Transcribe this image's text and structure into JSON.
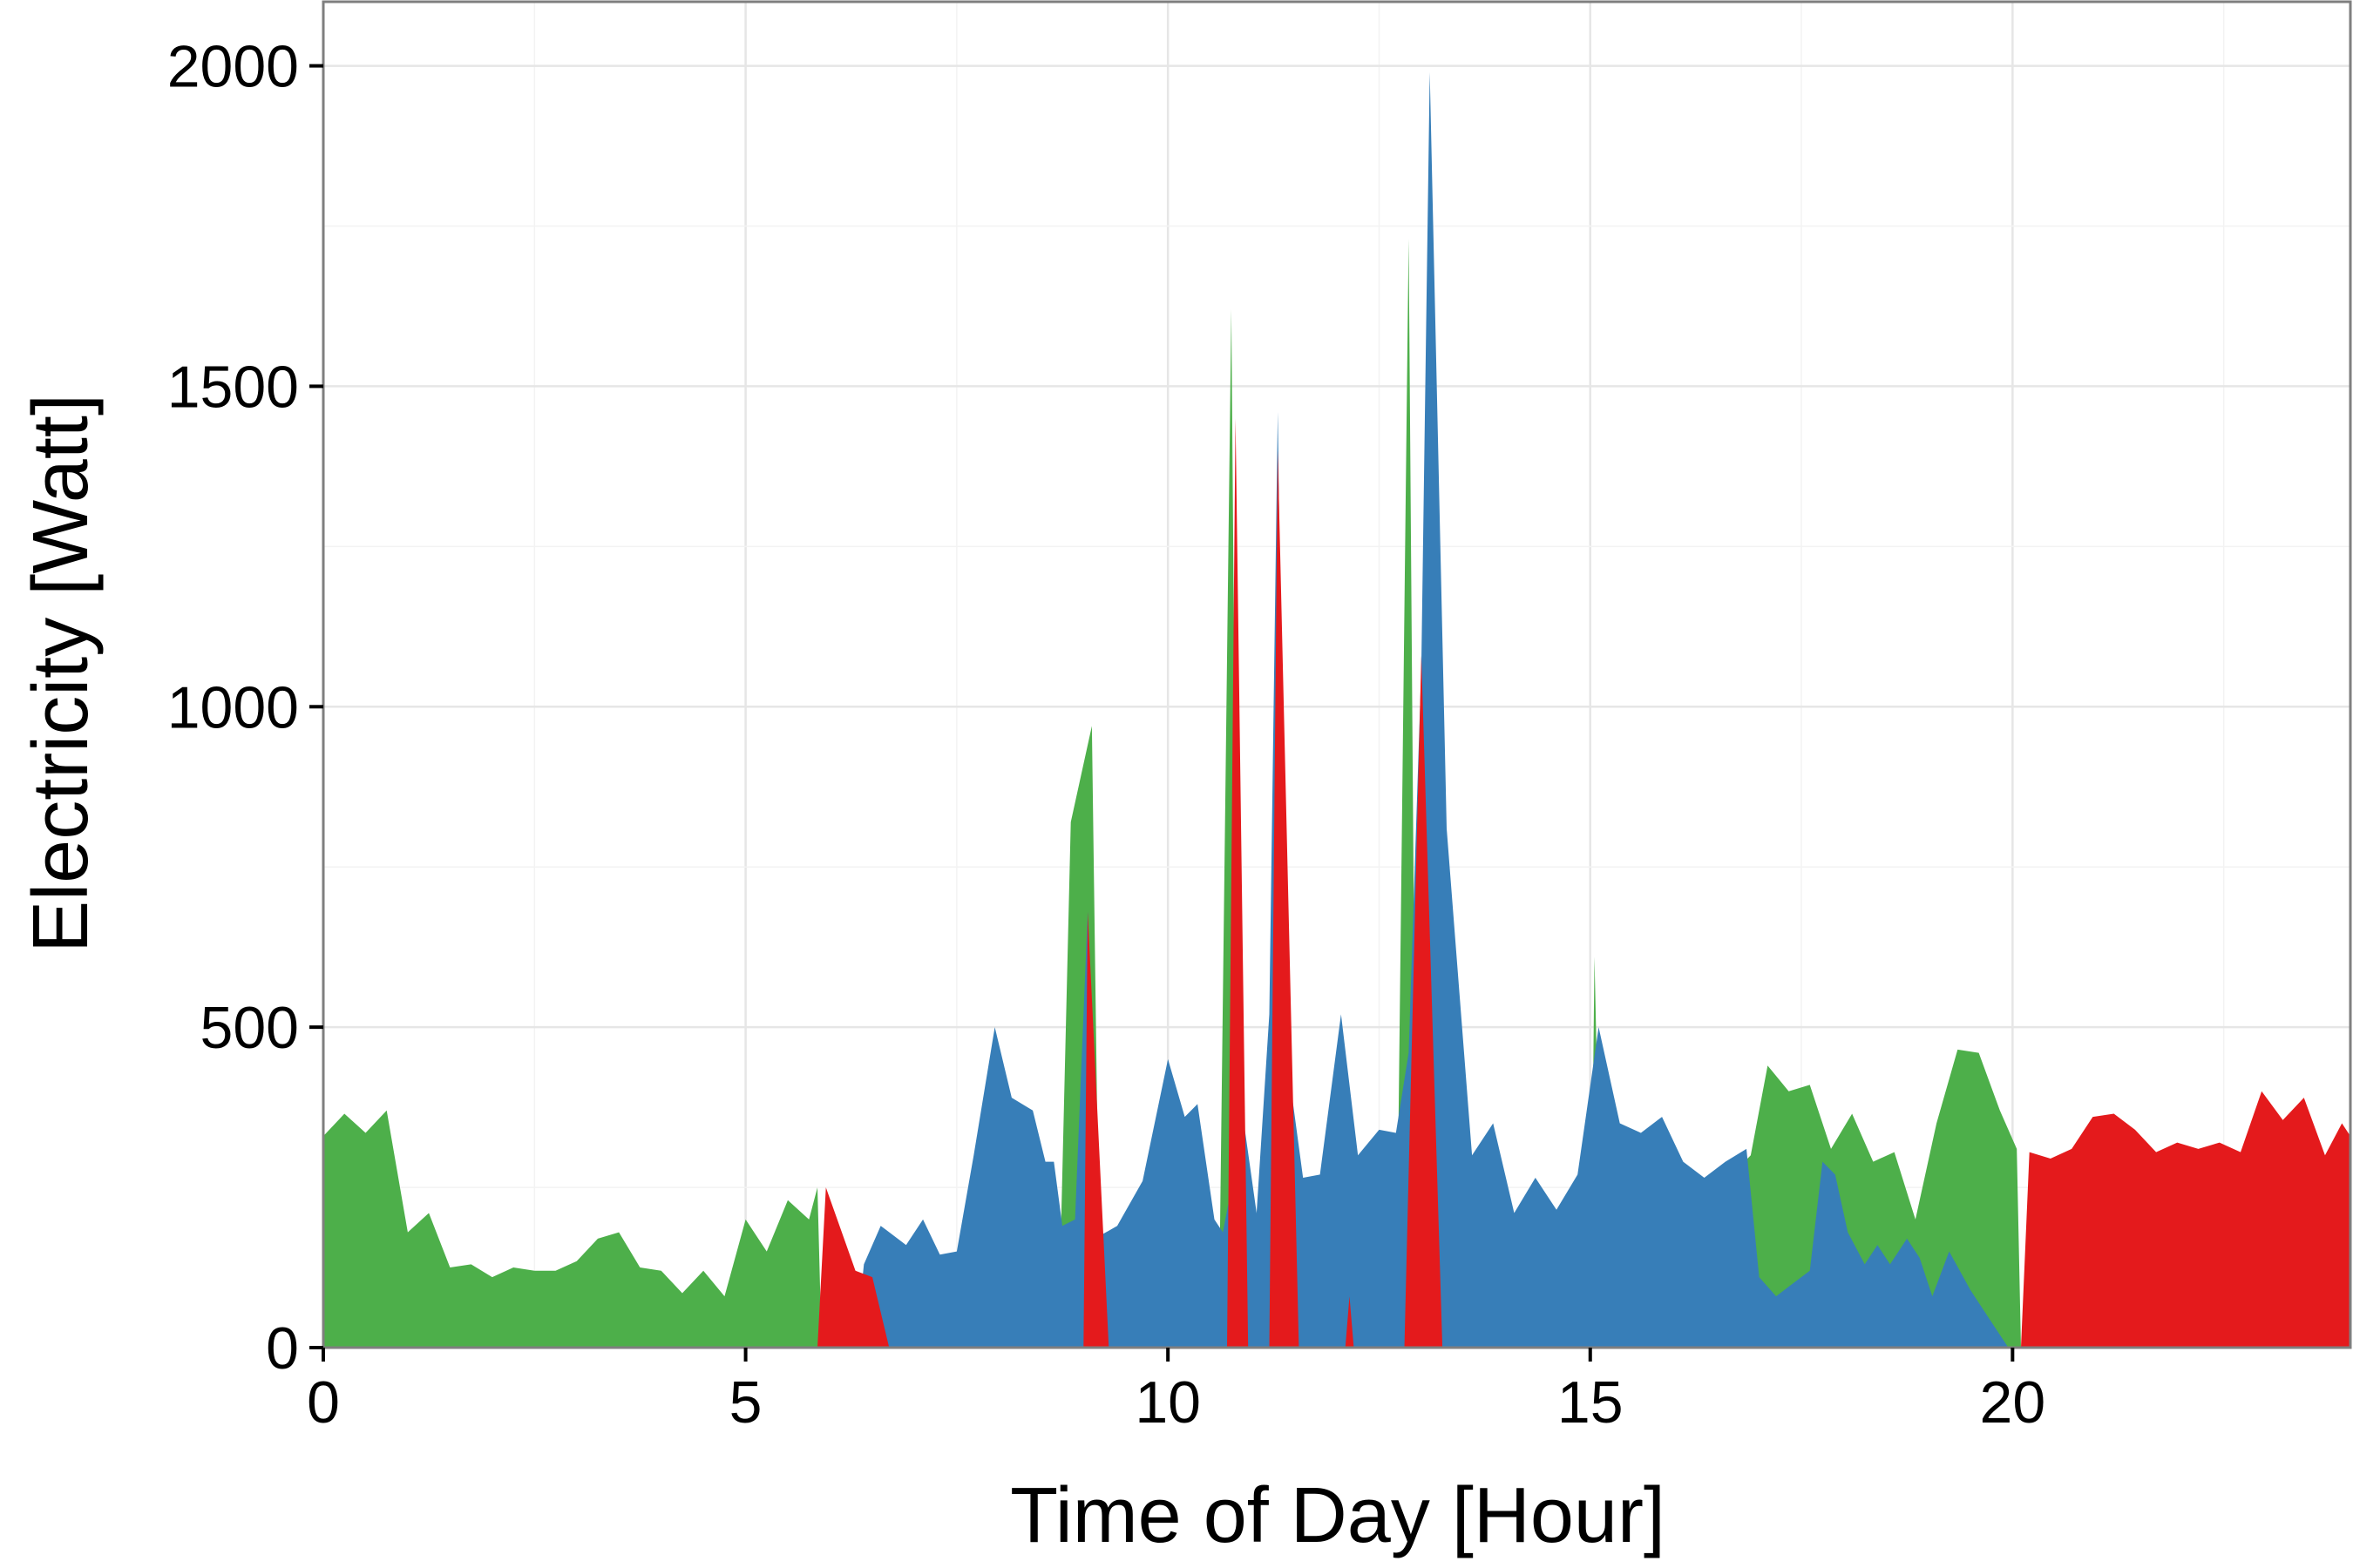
{
  "chart_data": {
    "type": "area",
    "title": "",
    "xlabel": "Time of Day [Hour]",
    "ylabel": "Electricity [Watt]",
    "xlim": [
      0,
      24
    ],
    "ylim": [
      0,
      2100
    ],
    "x_ticks": [
      0,
      5,
      10,
      15,
      20
    ],
    "y_ticks": [
      0,
      500,
      1000,
      1500,
      2000
    ],
    "grid": true,
    "legend": "none",
    "colors": {
      "green": "#4DAF4A",
      "blue": "#377EB8",
      "red": "#E41A1C"
    },
    "series": [
      {
        "color": "#4DAF4A",
        "points": [
          [
            0,
            330
          ],
          [
            0.25,
            365
          ],
          [
            0.5,
            335
          ],
          [
            0.75,
            370
          ],
          [
            1,
            180
          ],
          [
            1.25,
            210
          ],
          [
            1.5,
            125
          ],
          [
            1.75,
            130
          ],
          [
            2,
            110
          ],
          [
            2.25,
            125
          ],
          [
            2.5,
            120
          ],
          [
            2.75,
            120
          ],
          [
            3,
            135
          ],
          [
            3.25,
            170
          ],
          [
            3.5,
            180
          ],
          [
            3.75,
            125
          ],
          [
            4,
            120
          ],
          [
            4.25,
            85
          ],
          [
            4.5,
            120
          ],
          [
            4.75,
            80
          ],
          [
            5,
            200
          ],
          [
            5.25,
            150
          ],
          [
            5.5,
            230
          ],
          [
            5.75,
            200
          ],
          [
            5.85,
            250
          ],
          [
            5.9,
            0
          ],
          [
            8.7,
            0
          ],
          [
            8.85,
            820
          ],
          [
            9.1,
            970
          ],
          [
            9.2,
            0
          ],
          [
            10.6,
            0
          ],
          [
            10.75,
            1620
          ],
          [
            10.85,
            0
          ],
          [
            12.7,
            0
          ],
          [
            12.85,
            1730
          ],
          [
            12.95,
            0
          ],
          [
            15,
            0
          ],
          [
            15.05,
            610
          ],
          [
            15.15,
            0
          ],
          [
            16.5,
            0
          ],
          [
            16.6,
            260
          ],
          [
            16.9,
            300
          ],
          [
            17.1,
            440
          ],
          [
            17.35,
            400
          ],
          [
            17.6,
            410
          ],
          [
            17.85,
            310
          ],
          [
            18.1,
            365
          ],
          [
            18.35,
            290
          ],
          [
            18.6,
            305
          ],
          [
            18.85,
            200
          ],
          [
            19.1,
            350
          ],
          [
            19.35,
            465
          ],
          [
            19.6,
            460
          ],
          [
            19.85,
            370
          ],
          [
            20.05,
            310
          ],
          [
            20.1,
            0
          ],
          [
            24,
            0
          ]
        ]
      },
      {
        "color": "#377EB8",
        "points": [
          [
            0,
            0
          ],
          [
            6.3,
            0
          ],
          [
            6.4,
            130
          ],
          [
            6.6,
            190
          ],
          [
            6.9,
            160
          ],
          [
            7.1,
            200
          ],
          [
            7.3,
            145
          ],
          [
            7.5,
            150
          ],
          [
            7.7,
            300
          ],
          [
            7.95,
            500
          ],
          [
            8.15,
            390
          ],
          [
            8.4,
            370
          ],
          [
            8.55,
            290
          ],
          [
            8.65,
            290
          ],
          [
            8.75,
            190
          ],
          [
            8.9,
            200
          ],
          [
            9.05,
            680
          ],
          [
            9.2,
            175
          ],
          [
            9.4,
            190
          ],
          [
            9.7,
            260
          ],
          [
            10,
            450
          ],
          [
            10.2,
            360
          ],
          [
            10.35,
            380
          ],
          [
            10.55,
            200
          ],
          [
            10.65,
            180
          ],
          [
            10.9,
            350
          ],
          [
            11.05,
            210
          ],
          [
            11.2,
            520
          ],
          [
            11.3,
            1460
          ],
          [
            11.4,
            460
          ],
          [
            11.6,
            265
          ],
          [
            11.8,
            270
          ],
          [
            12.05,
            520
          ],
          [
            12.25,
            300
          ],
          [
            12.5,
            340
          ],
          [
            12.7,
            335
          ],
          [
            12.85,
            460
          ],
          [
            13,
            1060
          ],
          [
            13.1,
            1990
          ],
          [
            13.3,
            810
          ],
          [
            13.6,
            300
          ],
          [
            13.85,
            350
          ],
          [
            14.1,
            210
          ],
          [
            14.35,
            265
          ],
          [
            14.6,
            215
          ],
          [
            14.85,
            270
          ],
          [
            15.1,
            500
          ],
          [
            15.35,
            350
          ],
          [
            15.6,
            335
          ],
          [
            15.85,
            360
          ],
          [
            16.1,
            290
          ],
          [
            16.35,
            265
          ],
          [
            16.6,
            290
          ],
          [
            16.85,
            310
          ],
          [
            17,
            110
          ],
          [
            17.2,
            80
          ],
          [
            17.4,
            100
          ],
          [
            17.6,
            120
          ],
          [
            17.75,
            290
          ],
          [
            17.9,
            270
          ],
          [
            18.05,
            180
          ],
          [
            18.25,
            130
          ],
          [
            18.4,
            160
          ],
          [
            18.55,
            130
          ],
          [
            18.75,
            170
          ],
          [
            18.9,
            140
          ],
          [
            19.05,
            80
          ],
          [
            19.25,
            150
          ],
          [
            19.5,
            90
          ],
          [
            19.75,
            40
          ],
          [
            19.95,
            0
          ],
          [
            24,
            0
          ]
        ]
      },
      {
        "color": "#E41A1C",
        "points": [
          [
            0,
            0
          ],
          [
            5.85,
            0
          ],
          [
            5.95,
            250
          ],
          [
            6.3,
            120
          ],
          [
            6.5,
            110
          ],
          [
            6.7,
            0
          ],
          [
            9.0,
            0
          ],
          [
            9.05,
            680
          ],
          [
            9.3,
            0
          ],
          [
            10.7,
            0
          ],
          [
            10.8,
            1450
          ],
          [
            10.95,
            0
          ],
          [
            11.2,
            0
          ],
          [
            11.3,
            1400
          ],
          [
            11.55,
            0
          ],
          [
            12.1,
            0
          ],
          [
            12.15,
            80
          ],
          [
            12.2,
            0
          ],
          [
            12.8,
            0
          ],
          [
            13,
            1080
          ],
          [
            13.25,
            0
          ],
          [
            20.1,
            0
          ],
          [
            20.2,
            305
          ],
          [
            20.45,
            295
          ],
          [
            20.7,
            310
          ],
          [
            20.95,
            360
          ],
          [
            21.2,
            365
          ],
          [
            21.45,
            340
          ],
          [
            21.7,
            305
          ],
          [
            21.95,
            320
          ],
          [
            22.2,
            310
          ],
          [
            22.45,
            320
          ],
          [
            22.7,
            305
          ],
          [
            22.95,
            400
          ],
          [
            23.2,
            355
          ],
          [
            23.45,
            390
          ],
          [
            23.7,
            300
          ],
          [
            23.9,
            350
          ],
          [
            24,
            330
          ]
        ]
      }
    ]
  }
}
